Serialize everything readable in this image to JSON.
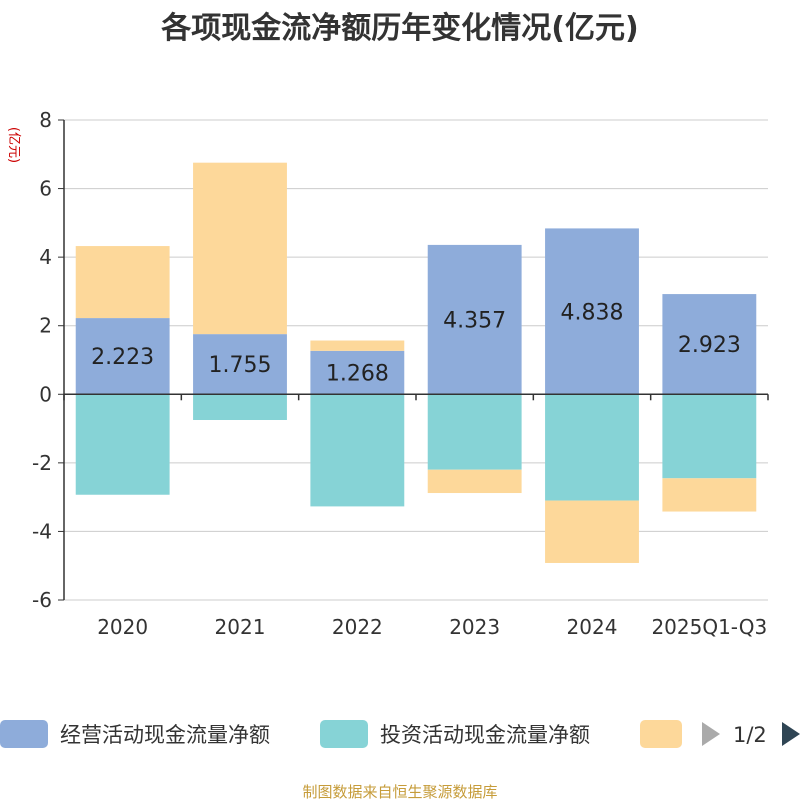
{
  "chart_data": {
    "type": "bar",
    "stacked": true,
    "title": "各项现金流净额历年变化情况(亿元)",
    "ylabel": "(亿元)",
    "xlabel": "",
    "ylim": [
      -6,
      8
    ],
    "yticks": [
      -6,
      -4,
      -2,
      0,
      2,
      4,
      6,
      8
    ],
    "categories": [
      "2020",
      "2021",
      "2022",
      "2023",
      "2024",
      "2025Q1-Q3"
    ],
    "series": [
      {
        "name": "经营活动现金流量净额",
        "color": "#8eacda",
        "values": [
          2.223,
          1.755,
          1.268,
          4.357,
          4.838,
          2.923
        ],
        "labels": [
          "2.223",
          "1.755",
          "1.268",
          "4.357",
          "4.838",
          "2.923"
        ]
      },
      {
        "name": "投资活动现金流量净额",
        "color": "#86d3d6",
        "values": [
          -2.93,
          -0.75,
          -3.27,
          -2.2,
          -3.1,
          -2.45
        ]
      },
      {
        "name": "",
        "color": "#fdd89a",
        "values": [
          2.1,
          5.0,
          0.3,
          -0.68,
          -1.82,
          -0.97
        ]
      }
    ],
    "legend": {
      "page": "1/2"
    },
    "source": "制图数据来自恒生聚源数据库"
  }
}
